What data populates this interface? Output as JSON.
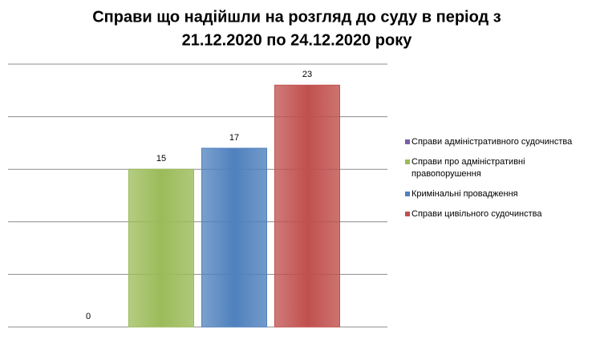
{
  "chart_data": {
    "type": "bar",
    "title": [
      "Справи що надійшли на розгляд до суду в період з",
      "21.12.2020  по 24.12.2020 року"
    ],
    "categories": [
      null
    ],
    "series": [
      {
        "name": "Справи адміністративного судочинства",
        "color": "#7b5ea7",
        "values": [
          0
        ]
      },
      {
        "name": "Справи про адміністративні правопорушення",
        "color": "#9bbb59",
        "values": [
          15
        ]
      },
      {
        "name": "Кримінальні провадження",
        "color": "#4f81bd",
        "values": [
          17
        ]
      },
      {
        "name": "Справи цивільного судочинства",
        "color": "#c0504d",
        "values": [
          23
        ]
      }
    ],
    "ylim": [
      0,
      25
    ],
    "yticks": [
      0,
      5,
      10,
      15,
      20,
      25
    ],
    "grid": true,
    "legend": "right"
  }
}
